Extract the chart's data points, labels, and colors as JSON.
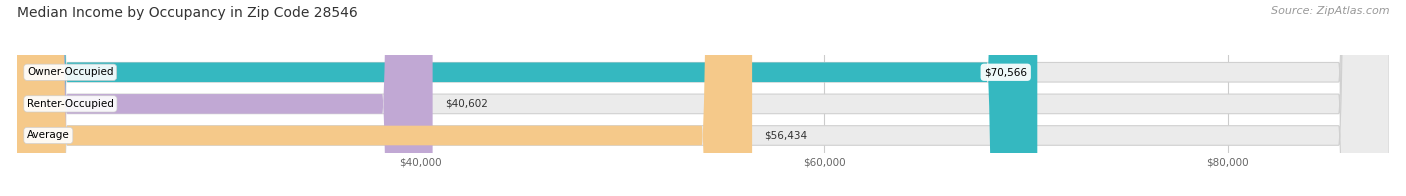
{
  "title": "Median Income by Occupancy in Zip Code 28546",
  "source": "Source: ZipAtlas.com",
  "categories": [
    "Owner-Occupied",
    "Renter-Occupied",
    "Average"
  ],
  "values": [
    70566,
    40602,
    56434
  ],
  "bar_colors": [
    "#35b8c0",
    "#c1a8d4",
    "#f5c98a"
  ],
  "labels": [
    "$70,566",
    "$40,602",
    "$56,434"
  ],
  "xlim": [
    20000,
    88000
  ],
  "xticks": [
    40000,
    60000,
    80000
  ],
  "xticklabels": [
    "$40,000",
    "$60,000",
    "$80,000"
  ],
  "background_color": "#ffffff",
  "bar_background_color": "#ebebeb",
  "title_fontsize": 10,
  "source_fontsize": 8,
  "bar_height": 0.62,
  "figsize": [
    14.06,
    1.96
  ]
}
